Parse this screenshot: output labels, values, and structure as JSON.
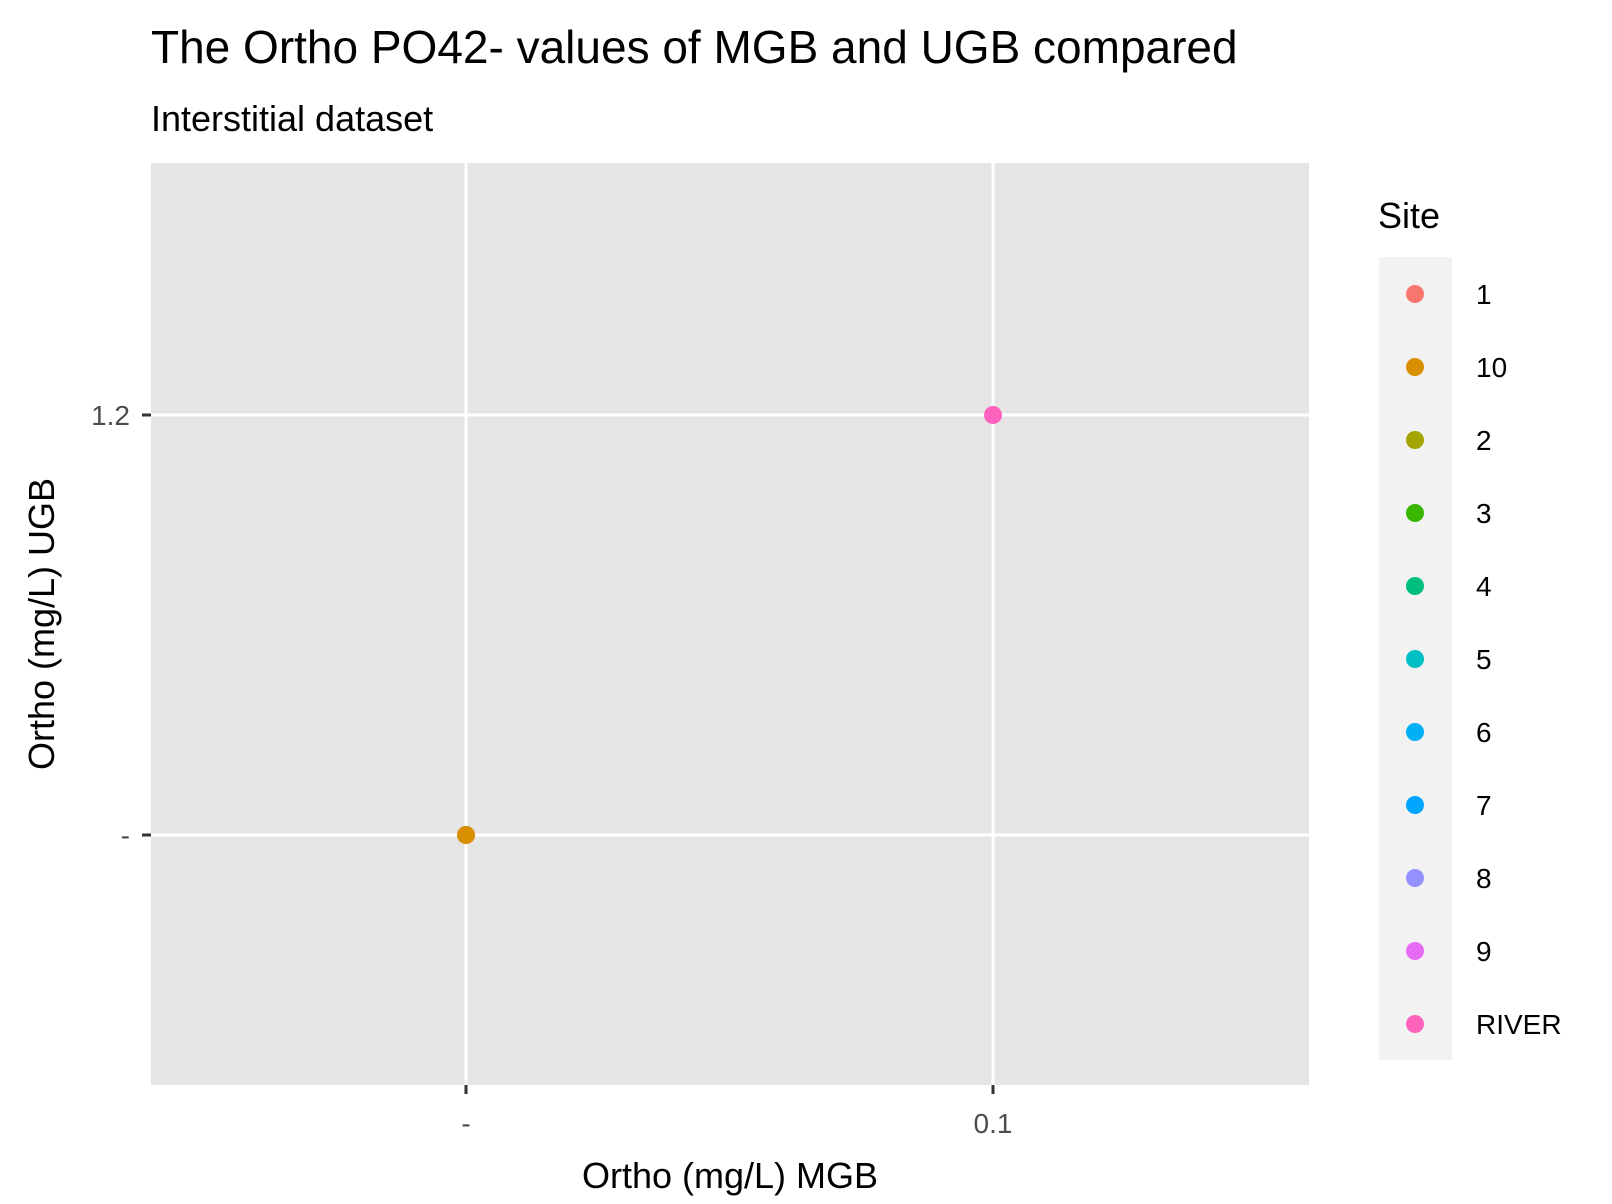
{
  "chart_data": {
    "type": "scatter",
    "title": "The Ortho PO42- values of MGB and UGB compared",
    "subtitle": "Interstitial dataset",
    "xlabel": "Ortho (mg/L) MGB",
    "ylabel": "Ortho (mg/L) UGB",
    "x_categories": [
      "-",
      "0.1"
    ],
    "y_categories": [
      "-",
      "1.2"
    ],
    "grid": true,
    "panel_background": "#e5e5e5",
    "legend": {
      "title": "Site",
      "placement": "right",
      "entries": [
        {
          "label": "1",
          "color": "#F8766D"
        },
        {
          "label": "10",
          "color": "#D89000"
        },
        {
          "label": "2",
          "color": "#A3A500"
        },
        {
          "label": "3",
          "color": "#39B600"
        },
        {
          "label": "4",
          "color": "#00BF7D"
        },
        {
          "label": "5",
          "color": "#00BFC4"
        },
        {
          "label": "6",
          "color": "#00B0F6"
        },
        {
          "label": "7",
          "color": "#00A5FF"
        },
        {
          "label": "8",
          "color": "#9590FF"
        },
        {
          "label": "9",
          "color": "#E76BF3"
        },
        {
          "label": "RIVER",
          "color": "#FF62BC"
        }
      ]
    },
    "points": [
      {
        "x": "-",
        "y": "-",
        "site": "1",
        "color": "#F8766D"
      },
      {
        "x": "-",
        "y": "-",
        "site": "10",
        "color": "#D89000"
      },
      {
        "x": "0.1",
        "y": "1.2",
        "site": "RIVER",
        "color": "#FF62BC"
      }
    ]
  }
}
